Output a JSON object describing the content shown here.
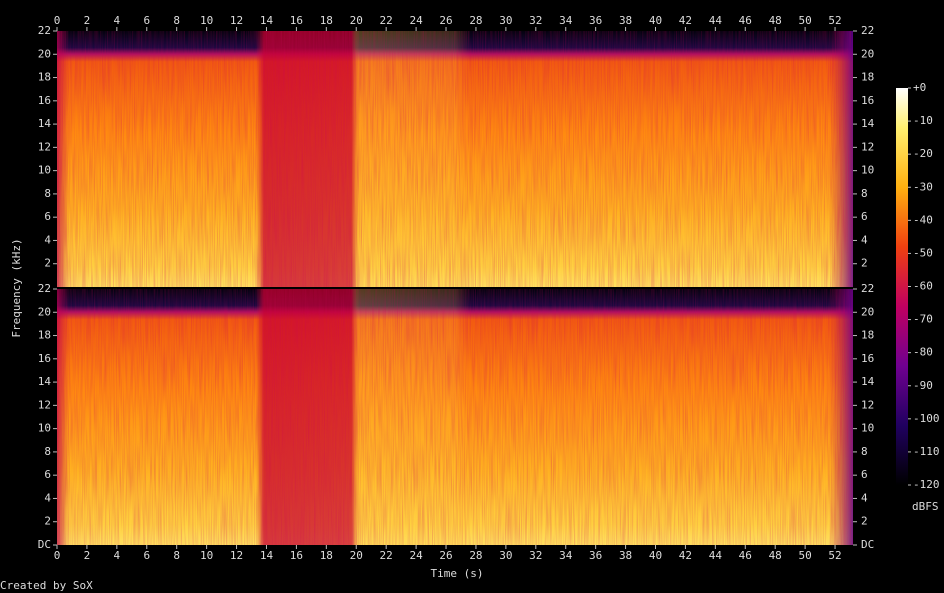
{
  "chart_data": {
    "type": "spectrogram",
    "xlabel": "Time (s)",
    "ylabel": "Frequency (kHz)",
    "credit": "Created by SoX",
    "xlim": [
      0,
      53.2
    ],
    "xticks": [
      0,
      2,
      4,
      6,
      8,
      10,
      12,
      14,
      16,
      18,
      20,
      22,
      24,
      26,
      28,
      30,
      32,
      34,
      36,
      38,
      40,
      42,
      44,
      46,
      48,
      50,
      52
    ],
    "panels": [
      {
        "ylim": [
          0,
          22
        ],
        "yticks": [
          2,
          4,
          6,
          8,
          10,
          12,
          14,
          16,
          18,
          20,
          22
        ]
      },
      {
        "ylim": [
          0,
          22
        ],
        "yticks": [
          {
            "value": 0,
            "label": "DC"
          },
          2,
          4,
          6,
          8,
          10,
          12,
          14,
          16,
          18,
          20,
          22
        ]
      }
    ],
    "colorbar": {
      "label": "dBFS",
      "lim": [
        -120,
        0
      ],
      "ticks": [
        {
          "value": 0,
          "label": "+0"
        },
        -10,
        -20,
        -30,
        -40,
        -50,
        -60,
        -70,
        -80,
        -90,
        -100,
        -110,
        -120
      ]
    }
  }
}
